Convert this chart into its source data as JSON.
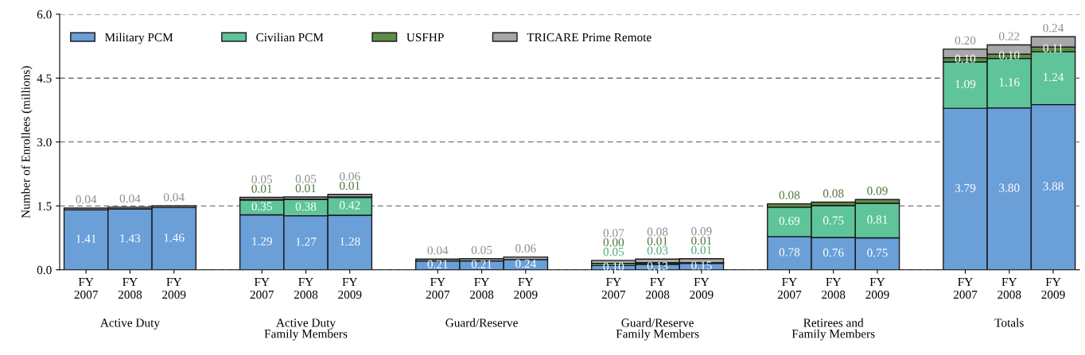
{
  "chart_data": {
    "type": "bar",
    "stacked": true,
    "ylabel": "Number of Enrollees (millions)",
    "categories": [
      "FY\n2007",
      "FY\n2008",
      "FY\n2009",
      null,
      "FY\n2007",
      "FY\n2008",
      "FY\n2009",
      null,
      "FY\n2007",
      "FY\n2008",
      "FY\n2009",
      null,
      "FY\n2007",
      "FY\n2008",
      "FY\n2009",
      null,
      "FY\n2007",
      "FY\n2008",
      "FY\n2009",
      null,
      "FY\n2007",
      "FY\n2008",
      "FY\n2009"
    ],
    "series": [
      {
        "name": "Military PCM",
        "color": "#6a9fd8",
        "values": [
          1.41,
          1.43,
          1.46,
          null,
          1.29,
          1.27,
          1.28,
          null,
          0.21,
          0.21,
          0.24,
          null,
          0.1,
          0.13,
          0.15,
          null,
          0.78,
          0.76,
          0.75,
          null,
          3.79,
          3.8,
          3.88
        ],
        "value_labels": [
          "1.41",
          "1.43",
          "1.46",
          null,
          "1.29",
          "1.27",
          "1.28",
          null,
          "0.21",
          "0.21",
          "0.24",
          null,
          "0.10",
          "0.13",
          "0.15",
          null,
          "0.78",
          "0.76",
          "0.75",
          null,
          "3.79",
          "3.80",
          "3.88"
        ]
      },
      {
        "name": "Civilian PCM",
        "color": "#5fc49a",
        "values": [
          null,
          null,
          null,
          null,
          0.35,
          0.38,
          0.42,
          null,
          null,
          null,
          null,
          null,
          0.05,
          0.03,
          0.01,
          null,
          0.69,
          0.75,
          0.81,
          null,
          1.09,
          1.16,
          1.24
        ],
        "value_labels": [
          null,
          null,
          null,
          null,
          "0.35",
          "0.38",
          "0.42",
          null,
          null,
          null,
          null,
          null,
          "0.05",
          "0.03",
          "0.01",
          null,
          "0.69",
          "0.75",
          "0.81",
          null,
          "1.09",
          "1.16",
          "1.24"
        ]
      },
      {
        "name": "USFHP",
        "color": "#5e8c45",
        "values": [
          null,
          null,
          null,
          null,
          0.01,
          0.01,
          0.01,
          null,
          null,
          null,
          null,
          null,
          0.0,
          0.01,
          0.01,
          null,
          0.08,
          0.08,
          0.09,
          null,
          0.1,
          0.1,
          0.11
        ],
        "value_labels": [
          null,
          null,
          null,
          null,
          "0.01",
          "0.01",
          "0.01",
          null,
          null,
          null,
          null,
          null,
          "0.00",
          "0.01",
          "0.01",
          null,
          "0.08",
          "0.08",
          "0.09",
          null,
          "0.10",
          "0.10",
          "0.11"
        ]
      },
      {
        "name": "TRICARE Prime Remote",
        "color": "#a6a7a9",
        "values": [
          0.04,
          0.04,
          0.04,
          null,
          0.05,
          0.05,
          0.06,
          null,
          0.04,
          0.05,
          0.06,
          null,
          0.07,
          0.08,
          0.09,
          null,
          null,
          null,
          null,
          null,
          0.2,
          0.22,
          0.24
        ],
        "value_labels": [
          "0.04",
          "0.04",
          "0.04",
          null,
          "0.05",
          "0.05",
          "0.06",
          null,
          "0.04",
          "0.05",
          "0.06",
          null,
          "0.07",
          "0.08",
          "0.09",
          null,
          null,
          null,
          null,
          null,
          "0.20",
          "0.22",
          "0.24"
        ]
      }
    ],
    "annotations": [
      "Active Duty",
      "Active Duty\nFamily Members",
      "Guard/Reserve",
      "Guard/Reserve\nFamily Members",
      "Retirees and\nFamily Members",
      "Totals"
    ],
    "ylim": [
      0,
      6
    ],
    "yticks": [
      {
        "value": 0,
        "label": "0.0"
      },
      {
        "value": 1.5,
        "label": "1.5"
      },
      {
        "value": 3,
        "label": "3.0"
      },
      {
        "value": 4.5,
        "label": "4.5"
      },
      {
        "value": 6,
        "label": "6.0"
      }
    ],
    "grid": "y",
    "legend": "top left"
  }
}
